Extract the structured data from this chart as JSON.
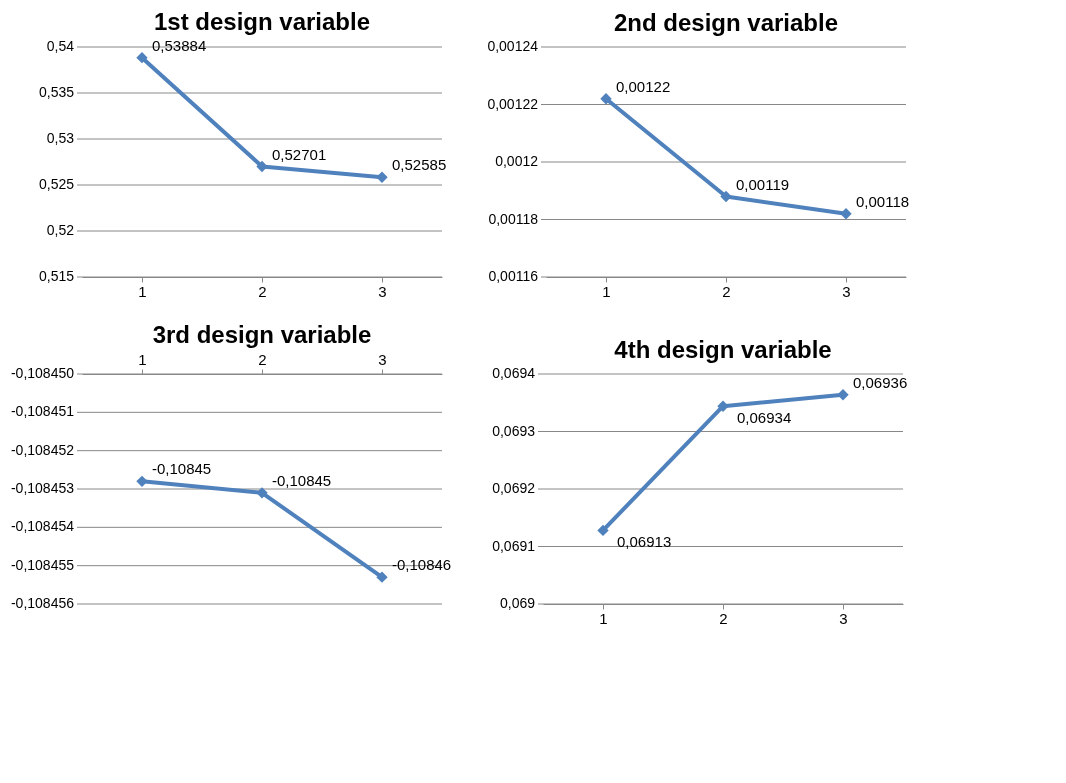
{
  "chart_data": [
    {
      "type": "line",
      "title": "1st design variable",
      "categories": [
        "1",
        "2",
        "3"
      ],
      "series": [
        {
          "color": "#4f81bd",
          "values": [
            0.53884,
            0.52701,
            0.52585
          ],
          "value_labels": [
            "0,53884",
            "0,52701",
            "0,52585"
          ]
        }
      ],
      "ylim": [
        0.515,
        0.54
      ],
      "yticks": [
        {
          "value": 0.515,
          "label": "0,515"
        },
        {
          "value": 0.52,
          "label": "0,52"
        },
        {
          "value": 0.525,
          "label": "0,525"
        },
        {
          "value": 0.53,
          "label": "0,53"
        },
        {
          "value": 0.535,
          "label": "0,535"
        },
        {
          "value": 0.54,
          "label": "0,54"
        }
      ],
      "grid": "y",
      "legend": false,
      "marker": "diamond",
      "line_style": "solid"
    },
    {
      "type": "line",
      "title": "2nd design variable",
      "categories": [
        "1",
        "2",
        "3"
      ],
      "series": [
        {
          "color": "#4f81bd",
          "values": [
            0.001222,
            0.001188,
            0.001182
          ],
          "value_labels": [
            "0,00122",
            "0,00119",
            "0,00118"
          ]
        }
      ],
      "ylim": [
        0.00116,
        0.00124
      ],
      "yticks": [
        {
          "value": 0.00116,
          "label": "0,00116"
        },
        {
          "value": 0.00118,
          "label": "0,00118"
        },
        {
          "value": 0.0012,
          "label": "0,0012"
        },
        {
          "value": 0.00122,
          "label": "0,00122"
        },
        {
          "value": 0.00124,
          "label": "0,00124"
        }
      ],
      "grid": "y",
      "legend": false,
      "marker": "diamond",
      "line_style": "solid"
    },
    {
      "type": "line",
      "title": "3rd design variable",
      "categories": [
        "1",
        "2",
        "3"
      ],
      "series": [
        {
          "color": "#4f81bd",
          "values": [
            -0.1084528,
            -0.1084531,
            -0.1084553
          ],
          "value_labels": [
            "-0,10845",
            "-0,10845",
            "-0,10846"
          ]
        }
      ],
      "ylim": [
        -0.108456,
        -0.10845
      ],
      "yticks": [
        {
          "value": -0.108456,
          "label": "-0,108456"
        },
        {
          "value": -0.108455,
          "label": "-0,108455"
        },
        {
          "value": -0.108454,
          "label": "-0,108454"
        },
        {
          "value": -0.108453,
          "label": "-0,108453"
        },
        {
          "value": -0.108452,
          "label": "-0,108452"
        },
        {
          "value": -0.108451,
          "label": "-0,108451"
        },
        {
          "value": -0.10845,
          "label": "-0,108450"
        }
      ],
      "grid": "y",
      "legend": false,
      "marker": "diamond",
      "line_style": "solid"
    },
    {
      "type": "line",
      "title": "4th design variable",
      "categories": [
        "1",
        "2",
        "3"
      ],
      "series": [
        {
          "color": "#4f81bd",
          "values": [
            0.069128,
            0.069344,
            0.069364
          ],
          "value_labels": [
            "0,06913",
            "0,06934",
            "0,06936"
          ]
        }
      ],
      "ylim": [
        0.069,
        0.0694
      ],
      "yticks": [
        {
          "value": 0.069,
          "label": "0,069"
        },
        {
          "value": 0.0691,
          "label": "0,0691"
        },
        {
          "value": 0.0692,
          "label": "0,0692"
        },
        {
          "value": 0.0693,
          "label": "0,0693"
        },
        {
          "value": 0.0694,
          "label": "0,0694"
        }
      ],
      "grid": "y",
      "legend": false,
      "marker": "diamond",
      "line_style": "solid"
    }
  ]
}
